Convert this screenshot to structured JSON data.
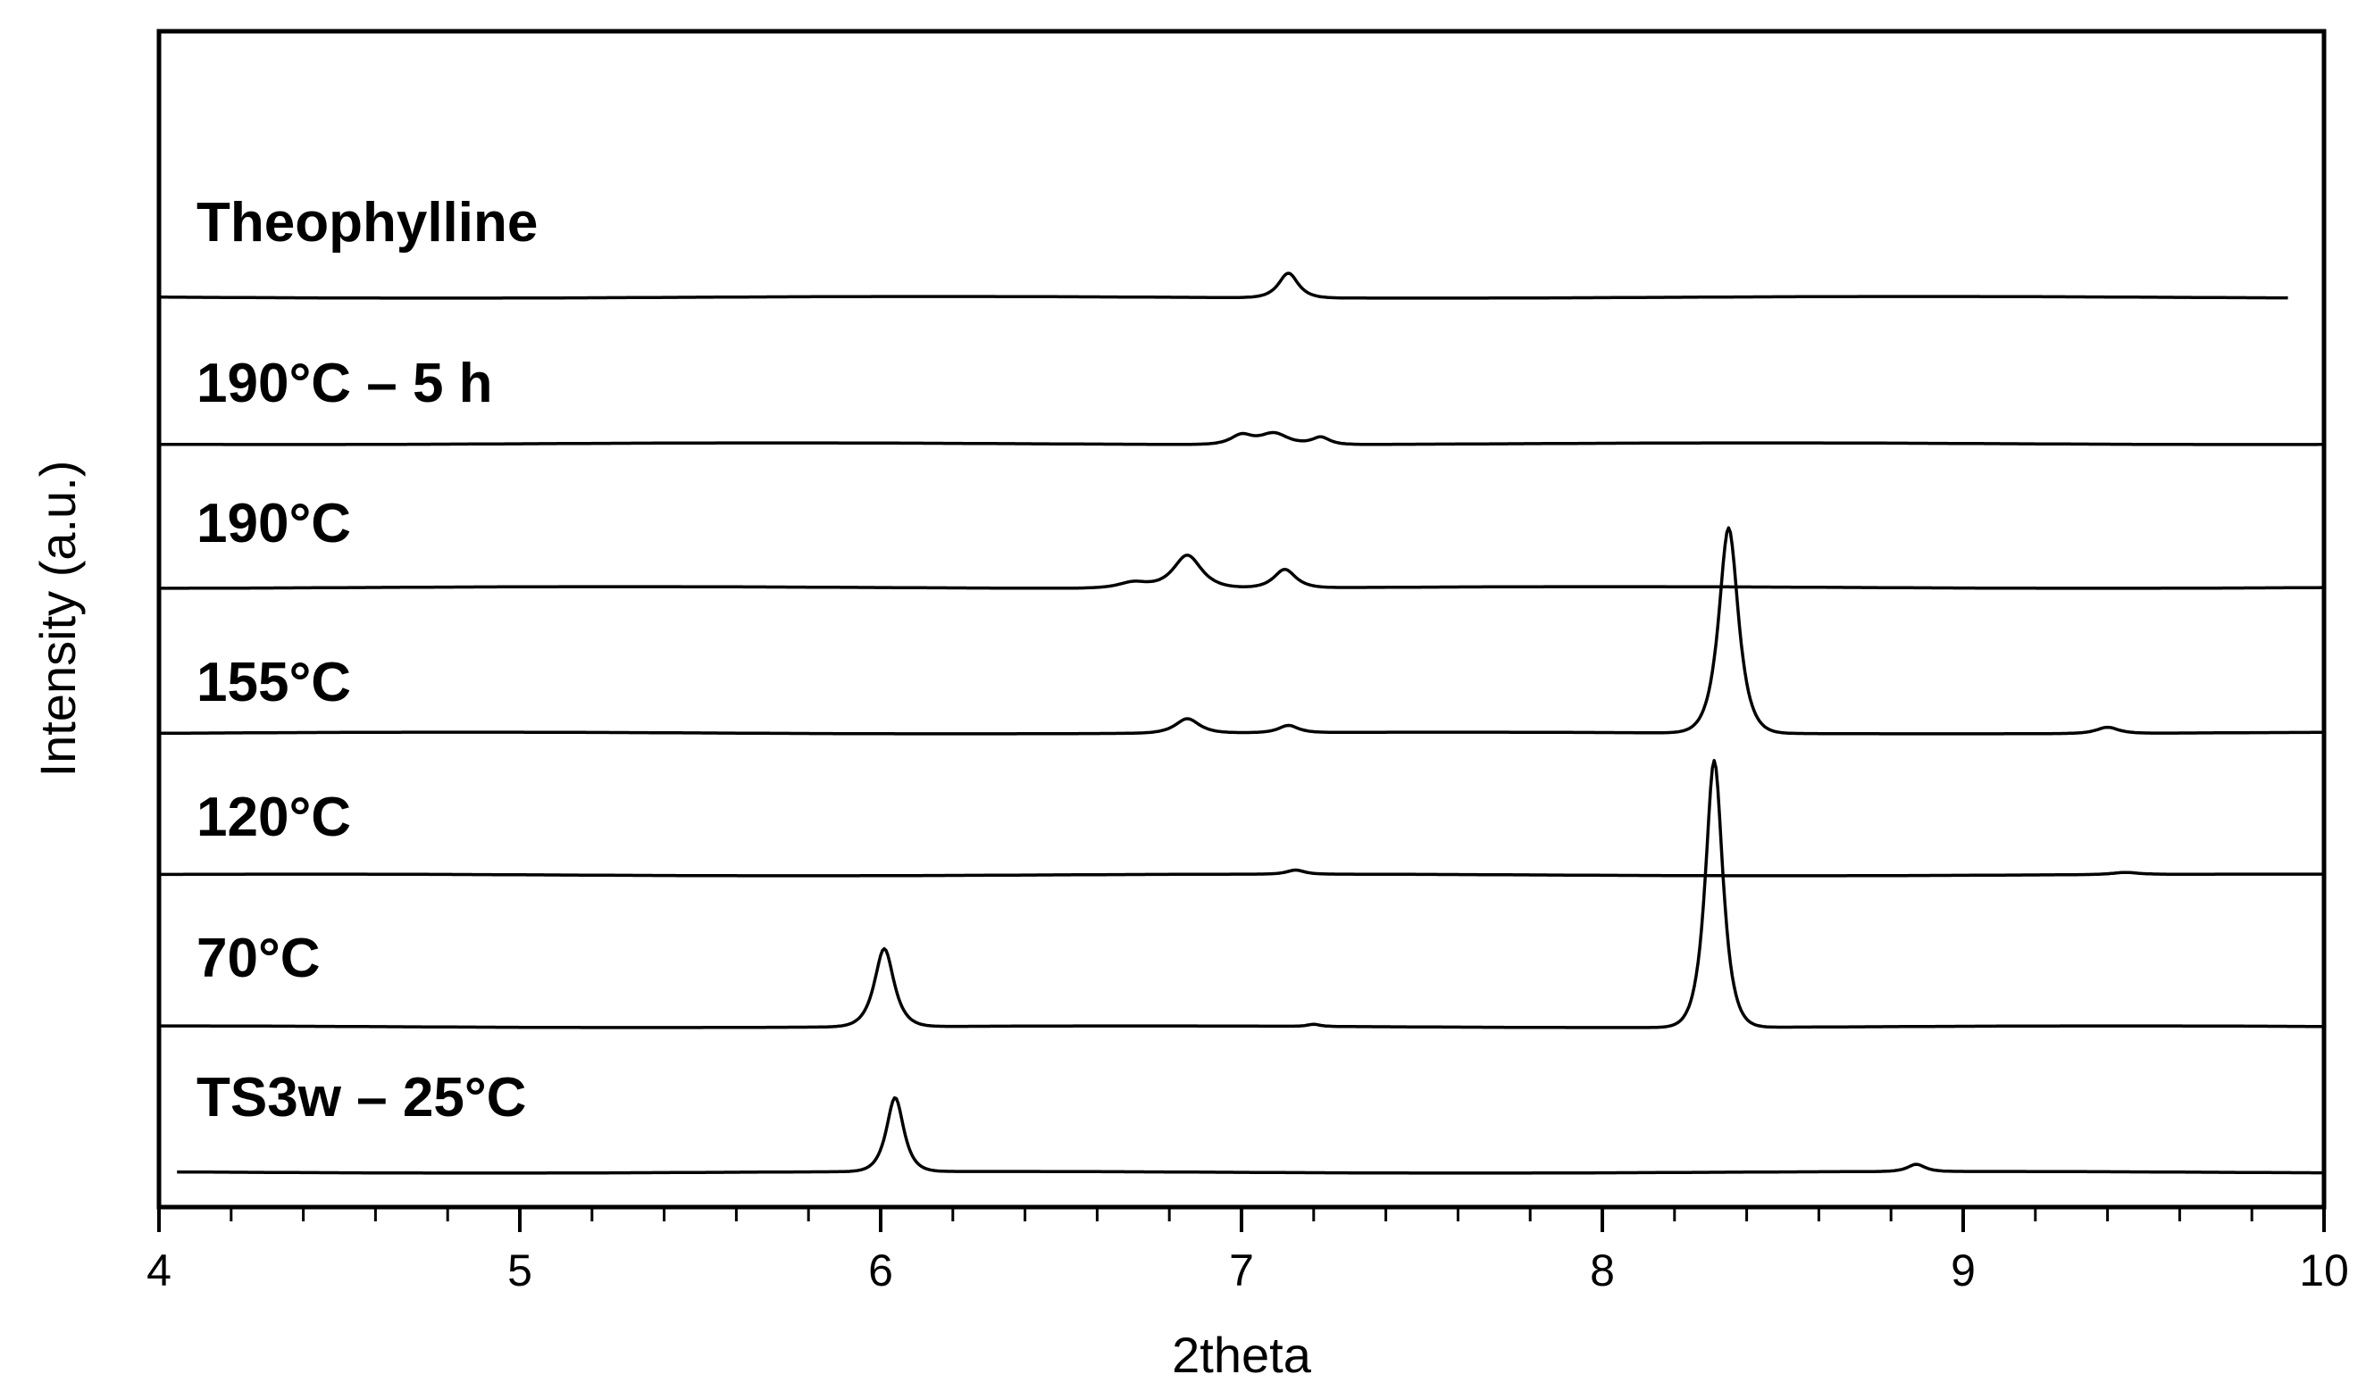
{
  "chart_data": {
    "type": "line",
    "title": "",
    "xlabel": "2theta",
    "ylabel": "Intensity (a.u.)",
    "xlim": [
      4,
      10
    ],
    "x_ticks": [
      4,
      5,
      6,
      7,
      8,
      9,
      10
    ],
    "x_minor_step": 0.2,
    "y_ticks": [],
    "grid": false,
    "legend": "inline labels at left of each trace",
    "stacked_offset": true,
    "colors": {
      "line": "#000000",
      "axes": "#000000",
      "background": "#ffffff"
    },
    "series": [
      {
        "name": "Theophylline",
        "x_range": [
          4.0,
          9.9
        ],
        "baseline": 0.0,
        "peaks": [
          {
            "x": 7.13,
            "h": 0.12,
            "w": 0.045
          }
        ]
      },
      {
        "name": "190°C – 5 h",
        "x_range": [
          4.0,
          10.0
        ],
        "baseline": 0.0,
        "peaks": [
          {
            "x": 7.0,
            "h": 0.045,
            "w": 0.05
          },
          {
            "x": 7.09,
            "h": 0.055,
            "w": 0.065
          },
          {
            "x": 7.22,
            "h": 0.035,
            "w": 0.04
          }
        ]
      },
      {
        "name": "190°C",
        "x_range": [
          4.0,
          10.0
        ],
        "baseline": 0.0,
        "peaks": [
          {
            "x": 6.85,
            "h": 0.16,
            "w": 0.065
          },
          {
            "x": 7.12,
            "h": 0.09,
            "w": 0.05
          },
          {
            "x": 6.7,
            "h": 0.03,
            "w": 0.07
          }
        ]
      },
      {
        "name": "155°C",
        "x_range": [
          4.0,
          10.0
        ],
        "baseline": 0.0,
        "peaks": [
          {
            "x": 6.85,
            "h": 0.07,
            "w": 0.055
          },
          {
            "x": 7.13,
            "h": 0.035,
            "w": 0.045
          },
          {
            "x": 8.35,
            "h": 1.0,
            "w": 0.045
          },
          {
            "x": 9.4,
            "h": 0.03,
            "w": 0.05
          }
        ]
      },
      {
        "name": "120°C",
        "x_range": [
          4.0,
          10.0
        ],
        "baseline": 0.0,
        "peaks": [
          {
            "x": 7.15,
            "h": 0.02,
            "w": 0.04
          },
          {
            "x": 9.45,
            "h": 0.01,
            "w": 0.06
          }
        ]
      },
      {
        "name": "70°C",
        "x_range": [
          4.0,
          10.0
        ],
        "baseline": 0.0,
        "peaks": [
          {
            "x": 6.01,
            "h": 0.38,
            "w": 0.045
          },
          {
            "x": 8.31,
            "h": 1.3,
            "w": 0.04
          },
          {
            "x": 7.2,
            "h": 0.01,
            "w": 0.03
          }
        ]
      },
      {
        "name": "TS3w – 25°C",
        "x_range": [
          4.05,
          10.0
        ],
        "baseline": 0.0,
        "peaks": [
          {
            "x": 6.04,
            "h": 0.36,
            "w": 0.04
          },
          {
            "x": 8.87,
            "h": 0.035,
            "w": 0.04
          }
        ]
      }
    ]
  }
}
